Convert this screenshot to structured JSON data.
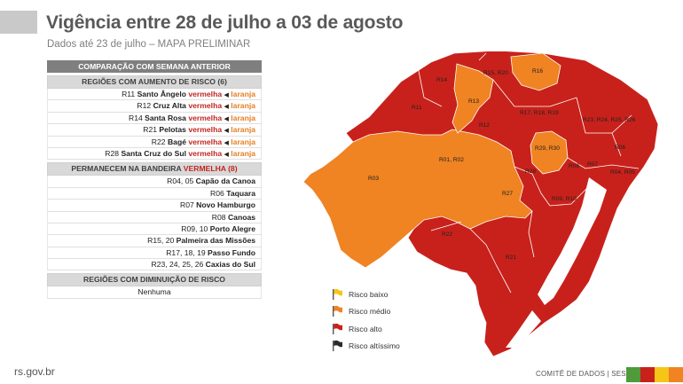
{
  "title": "Vigência entre 28 de julho a 03 de agosto",
  "subtitle": "Dados até 23 de julho – MAPA PRELIMINAR",
  "table": {
    "header": "COMPARAÇÃO COM SEMANA ANTERIOR",
    "increase": {
      "heading": "REGIÕES COM AUMENTO DE RISCO (6)",
      "rows": [
        {
          "region": "R11",
          "city": "Santo Ângelo",
          "from": "vermelha",
          "to": "laranja"
        },
        {
          "region": "R12",
          "city": "Cruz Alta",
          "from": "vermelha",
          "to": "laranja"
        },
        {
          "region": "R14",
          "city": "Santa Rosa",
          "from": "vermelha",
          "to": "laranja"
        },
        {
          "region": "R21",
          "city": "Pelotas",
          "from": "vermelha",
          "to": "laranja"
        },
        {
          "region": "R22",
          "city": "Bagé",
          "from": "vermelha",
          "to": "laranja"
        },
        {
          "region": "R28",
          "city": "Santa Cruz do Sul",
          "from": "vermelha",
          "to": "laranja"
        }
      ]
    },
    "remain": {
      "heading_prefix": "PERMANECEM NA BANDEIRA",
      "heading_color": "VERMELHA (8)",
      "rows": [
        {
          "region": "R04, 05",
          "city": "Capão da Canoa"
        },
        {
          "region": "R06",
          "city": "Taquara"
        },
        {
          "region": "R07",
          "city": "Novo Hamburgo"
        },
        {
          "region": "R08",
          "city": "Canoas"
        },
        {
          "region": "R09, 10",
          "city": "Porto Alegre"
        },
        {
          "region": "R15, 20",
          "city": "Palmeira das Missões"
        },
        {
          "region": "R17, 18, 19",
          "city": "Passo Fundo"
        },
        {
          "region": "R23, 24, 25, 26",
          "city": "Caxias do Sul"
        }
      ]
    },
    "decrease": {
      "heading": "REGIÕES COM DIMINUIÇÃO DE RISCO",
      "value": "Nenhuma"
    }
  },
  "map": {
    "labels": {
      "r03": "R03",
      "r01r02": "R01, R02",
      "r27": "R27",
      "r22": "R22",
      "r21": "R21",
      "r14": "R14",
      "r11": "R11",
      "r13": "R13",
      "r12": "R12",
      "r15r20": "R15, R20",
      "r16": "R16",
      "r17r18r19": "R17, R18, R19",
      "r23_26": "R23, R24, R25, R26",
      "r29r30": "R29, R30",
      "r28": "R28",
      "r08": "R08",
      "r07": "R07",
      "r06": "R06",
      "r04r05": "R04, R05",
      "r09r10": "R09, R10"
    },
    "colors": {
      "orange": "#f08322",
      "red": "#c8211b",
      "yellow": "#f5c518",
      "black": "#2b2b2b"
    }
  },
  "legend": [
    {
      "label": "Risco baixo",
      "color": "#f5c518"
    },
    {
      "label": "Risco médio",
      "color": "#f08322"
    },
    {
      "label": "Risco alto",
      "color": "#c8211b"
    },
    {
      "label": "Risco altíssimo",
      "color": "#2b2b2b"
    }
  ],
  "footer": {
    "site": "rs.gov.br",
    "committee": "COMITÊ DE DADOS | SES",
    "flag_colors": [
      "#4f9a3a",
      "#c8211b",
      "#f5c518",
      "#f08322"
    ]
  }
}
